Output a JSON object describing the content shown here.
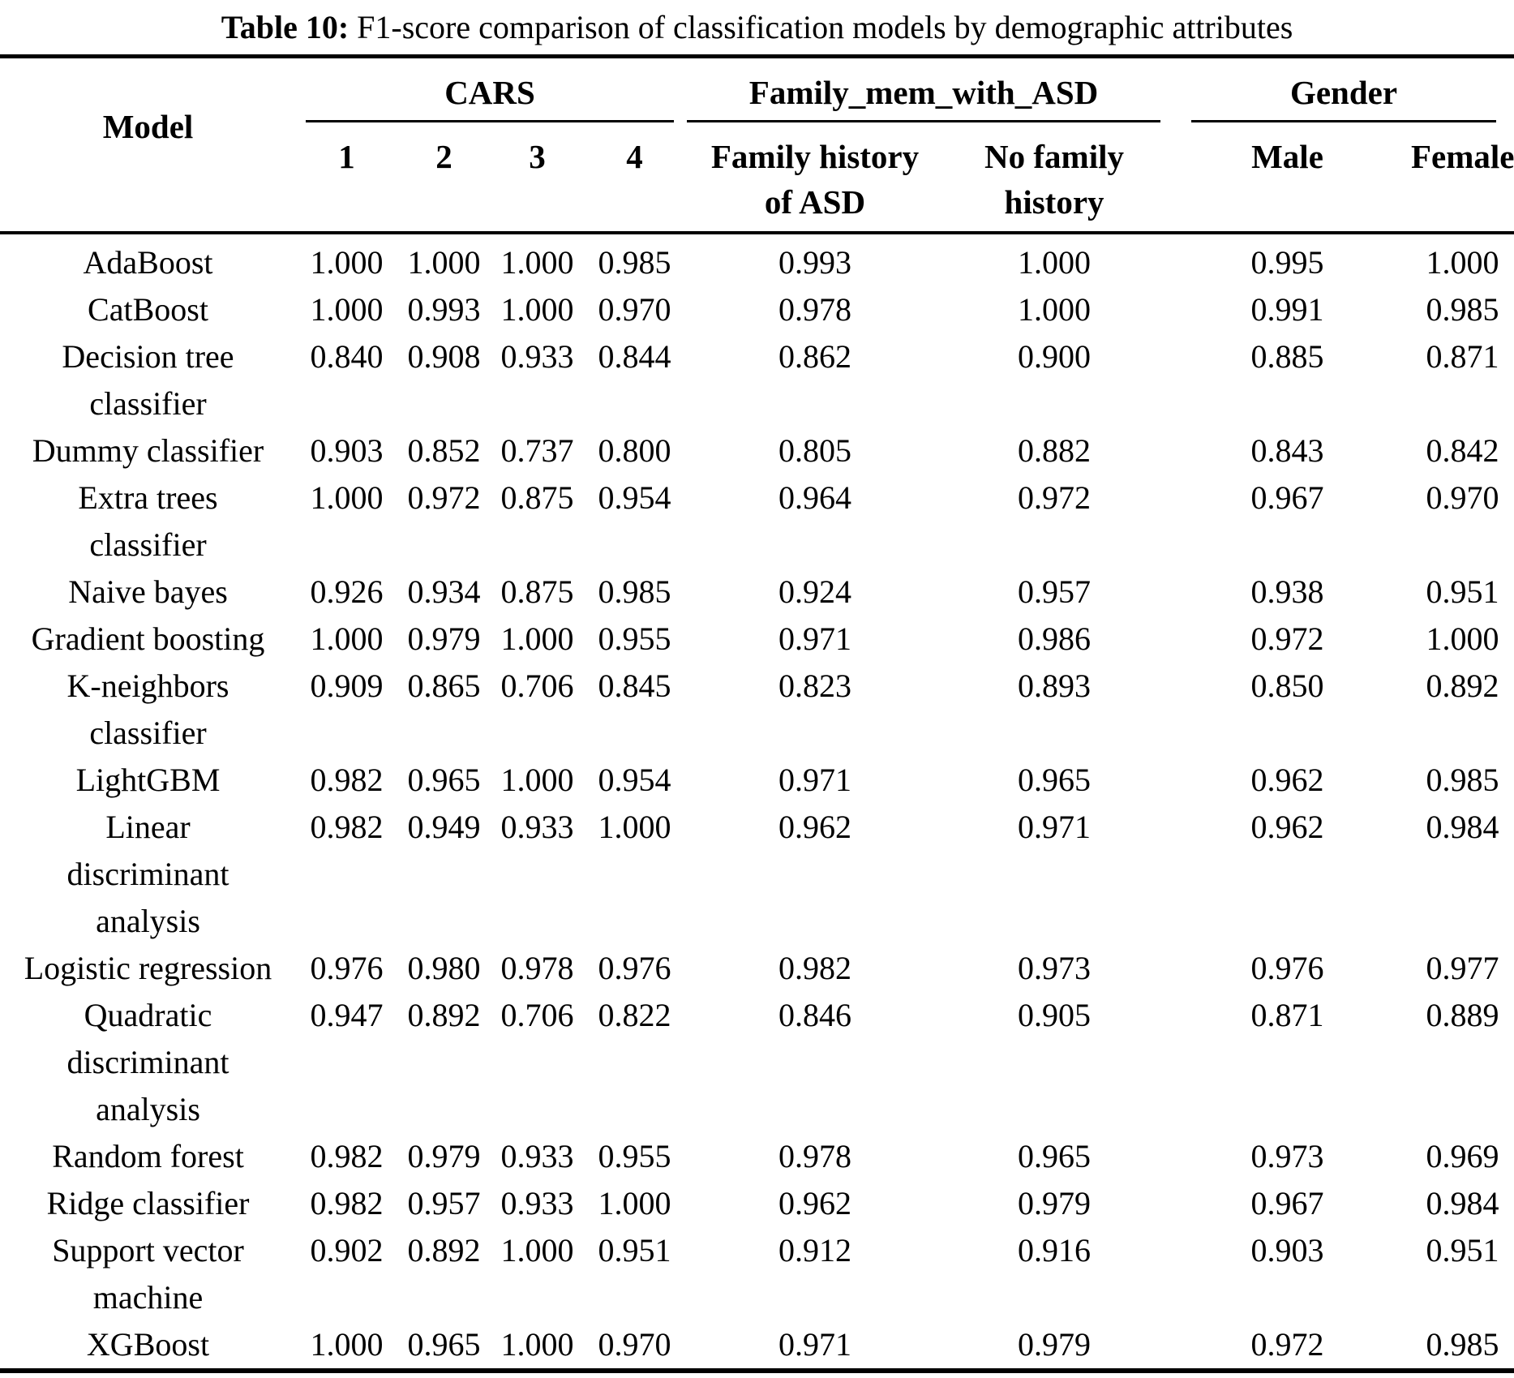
{
  "title": {
    "label": "Table 10:",
    "text": "F1-score comparison of classification models by demographic attributes"
  },
  "colors": {
    "text": "#000000",
    "background": "#ffffff",
    "rule": "#000000"
  },
  "table": {
    "model_header": "Model",
    "col_groups": [
      {
        "label": "CARS",
        "span": 4
      },
      {
        "label": "Family_mem_with_ASD",
        "span": 2
      },
      {
        "label": "Gender",
        "span": 2
      }
    ],
    "sub_headers": [
      "1",
      "2",
      "3",
      "4",
      "Family history\nof ASD",
      "No family\nhistory",
      "Male",
      "Female"
    ],
    "rows": [
      {
        "model": "AdaBoost",
        "values": [
          "1.000",
          "1.000",
          "1.000",
          "0.985",
          "0.993",
          "1.000",
          "0.995",
          "1.000"
        ]
      },
      {
        "model": "CatBoost",
        "values": [
          "1.000",
          "0.993",
          "1.000",
          "0.970",
          "0.978",
          "1.000",
          "0.991",
          "0.985"
        ]
      },
      {
        "model": "Decision tree\nclassifier",
        "values": [
          "0.840",
          "0.908",
          "0.933",
          "0.844",
          "0.862",
          "0.900",
          "0.885",
          "0.871"
        ]
      },
      {
        "model": "Dummy classifier",
        "values": [
          "0.903",
          "0.852",
          "0.737",
          "0.800",
          "0.805",
          "0.882",
          "0.843",
          "0.842"
        ]
      },
      {
        "model": "Extra trees\nclassifier",
        "values": [
          "1.000",
          "0.972",
          "0.875",
          "0.954",
          "0.964",
          "0.972",
          "0.967",
          "0.970"
        ]
      },
      {
        "model": "Naive bayes",
        "values": [
          "0.926",
          "0.934",
          "0.875",
          "0.985",
          "0.924",
          "0.957",
          "0.938",
          "0.951"
        ]
      },
      {
        "model": "Gradient boosting",
        "values": [
          "1.000",
          "0.979",
          "1.000",
          "0.955",
          "0.971",
          "0.986",
          "0.972",
          "1.000"
        ]
      },
      {
        "model": "K-neighbors\nclassifier",
        "values": [
          "0.909",
          "0.865",
          "0.706",
          "0.845",
          "0.823",
          "0.893",
          "0.850",
          "0.892"
        ]
      },
      {
        "model": "LightGBM",
        "values": [
          "0.982",
          "0.965",
          "1.000",
          "0.954",
          "0.971",
          "0.965",
          "0.962",
          "0.985"
        ]
      },
      {
        "model": "Linear\ndiscriminant\nanalysis",
        "values": [
          "0.982",
          "0.949",
          "0.933",
          "1.000",
          "0.962",
          "0.971",
          "0.962",
          "0.984"
        ]
      },
      {
        "model": "Logistic regression",
        "values": [
          "0.976",
          "0.980",
          "0.978",
          "0.976",
          "0.982",
          "0.973",
          "0.976",
          "0.977"
        ]
      },
      {
        "model": "Quadratic\ndiscriminant\nanalysis",
        "values": [
          "0.947",
          "0.892",
          "0.706",
          "0.822",
          "0.846",
          "0.905",
          "0.871",
          "0.889"
        ]
      },
      {
        "model": "Random forest",
        "values": [
          "0.982",
          "0.979",
          "0.933",
          "0.955",
          "0.978",
          "0.965",
          "0.973",
          "0.969"
        ]
      },
      {
        "model": "Ridge classifier",
        "values": [
          "0.982",
          "0.957",
          "0.933",
          "1.000",
          "0.962",
          "0.979",
          "0.967",
          "0.984"
        ]
      },
      {
        "model": "Support vector\nmachine",
        "values": [
          "0.902",
          "0.892",
          "1.000",
          "0.951",
          "0.912",
          "0.916",
          "0.903",
          "0.951"
        ]
      },
      {
        "model": "XGBoost",
        "values": [
          "1.000",
          "0.965",
          "1.000",
          "0.970",
          "0.971",
          "0.979",
          "0.972",
          "0.985"
        ]
      }
    ]
  }
}
